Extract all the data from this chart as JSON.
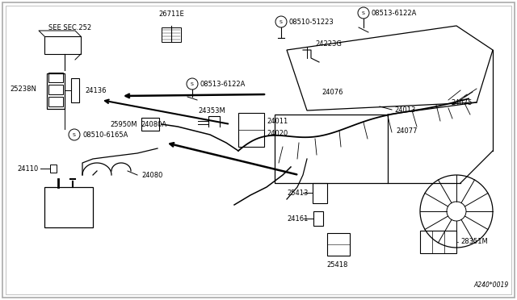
{
  "background_color": "#ffffff",
  "diagram_code": "A240*0019",
  "border_color": "#c8c8c8",
  "labels": {
    "see_sec": "SEE SEC.252",
    "p25238N": "25238N",
    "p24136": "24136",
    "p08510_6165A": "08510-6165A",
    "p25950M": "25950M",
    "p26711E": "26711E",
    "p08510_51223": "08510-51223",
    "p24223G": "24223G",
    "p08513_6122A_left": "08513-6122A",
    "p08513_6122A_top": "08513-6122A",
    "p24353M": "24353M",
    "p24011": "24011",
    "p24020": "24020",
    "p24076": "24076",
    "p24013": "24013",
    "p24075": "24075",
    "p24077": "24077",
    "p24080A": "24080A",
    "p24110": "24110",
    "p24080": "24080",
    "p25413": "25413",
    "p24161": "24161",
    "p25418": "25418",
    "p28351M": "28351M"
  }
}
